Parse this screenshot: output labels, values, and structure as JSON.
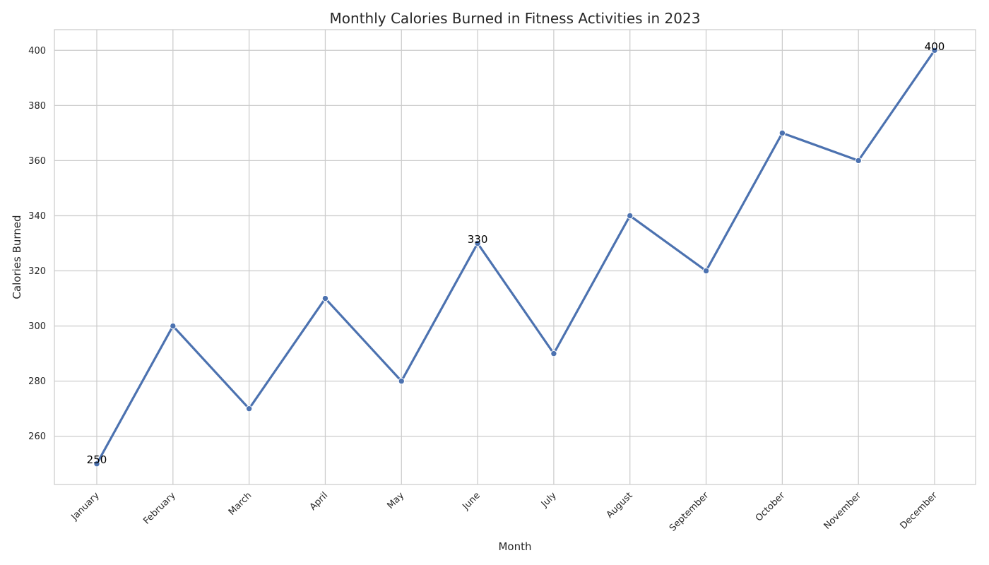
{
  "chart_data": {
    "type": "line",
    "title": "Monthly Calories Burned in Fitness Activities in 2023",
    "xlabel": "Month",
    "ylabel": "Calories Burned",
    "categories": [
      "January",
      "February",
      "March",
      "April",
      "May",
      "June",
      "July",
      "August",
      "September",
      "October",
      "November",
      "December"
    ],
    "series": [
      {
        "values": [
          250,
          300,
          270,
          310,
          280,
          330,
          290,
          340,
          320,
          370,
          360,
          400
        ]
      }
    ],
    "yticks": [
      260,
      280,
      300,
      320,
      340,
      360,
      380,
      400
    ],
    "ylim": [
      242.5,
      407.5
    ],
    "grid": true,
    "legend": "none",
    "annotations": [
      {
        "category": "January",
        "value": 250,
        "text": "250"
      },
      {
        "category": "June",
        "value": 330,
        "text": "330"
      },
      {
        "category": "December",
        "value": 400,
        "text": "400"
      }
    ],
    "colors": {
      "line": "#4c72b0",
      "grid": "#cccccc",
      "spine": "#cccccc",
      "text": "#262626",
      "annotation": "#000000"
    }
  }
}
